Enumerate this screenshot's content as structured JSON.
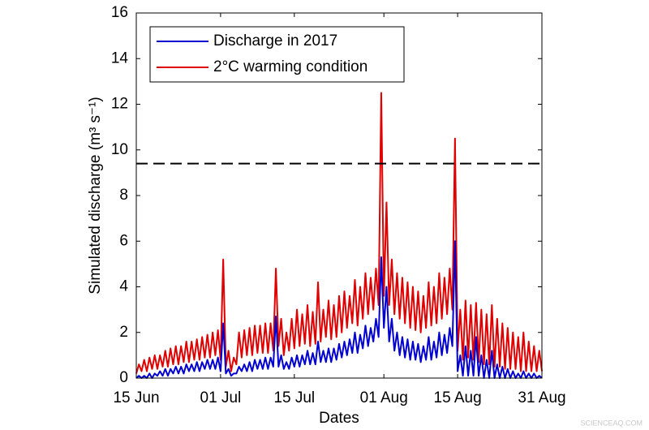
{
  "chart_data": {
    "type": "line",
    "xlabel": "Dates",
    "ylabel": "Simulated discharge (m³ s⁻¹)",
    "watermark": "SCIENCEAQ.COM",
    "x": [
      0,
      0.5,
      1,
      1.5,
      2,
      2.5,
      3,
      3.5,
      4,
      4.5,
      5,
      5.5,
      6,
      6.5,
      7,
      7.5,
      8,
      8.5,
      9,
      9.5,
      10,
      10.5,
      11,
      11.5,
      12,
      12.5,
      13,
      13.5,
      14,
      14.5,
      15,
      15.5,
      16,
      16.5,
      17,
      17.5,
      18,
      18.5,
      19,
      19.5,
      20,
      20.5,
      21,
      21.5,
      22,
      22.5,
      23,
      23.5,
      24,
      24.5,
      25,
      25.5,
      26,
      26.5,
      27,
      27.5,
      28,
      28.5,
      29,
      29.5,
      30,
      30.5,
      31,
      31.5,
      32,
      32.5,
      33,
      33.5,
      34,
      34.5,
      35,
      35.5,
      36,
      36.5,
      37,
      37.5,
      38,
      38.5,
      39,
      39.5,
      40,
      40.5,
      41,
      41.5,
      42,
      42.5,
      43,
      43.5,
      44,
      44.5,
      45,
      45.5,
      46,
      46.5,
      47,
      47.5,
      48,
      48.5,
      49,
      49.5,
      50,
      50.5,
      51,
      51.5,
      52,
      52.5,
      53,
      53.5,
      54,
      54.5,
      55,
      55.5,
      56,
      56.5,
      57,
      57.5,
      58,
      58.5,
      59,
      59.5,
      60,
      60.5,
      61,
      61.5,
      62,
      62.5,
      63,
      63.5,
      64,
      64.5,
      65,
      65.5,
      66,
      66.5,
      67,
      67.5,
      68,
      68.5,
      69,
      69.5,
      70,
      70.5,
      71,
      71.5,
      72,
      72.5,
      73,
      73.5,
      74,
      74.5,
      75,
      75.5,
      76,
      76.5,
      77
    ],
    "series": [
      {
        "name": "2°C warming condition",
        "color": "#e00000",
        "values": [
          0.2,
          0.6,
          0.3,
          0.8,
          0.3,
          0.9,
          0.4,
          1.0,
          0.4,
          1.0,
          0.5,
          1.2,
          0.5,
          1.3,
          0.6,
          1.4,
          0.6,
          1.4,
          0.7,
          1.6,
          0.7,
          1.6,
          0.8,
          1.7,
          0.8,
          1.8,
          0.9,
          1.9,
          0.9,
          2.0,
          1.0,
          2.1,
          0.8,
          5.2,
          0.5,
          1.2,
          0.3,
          0.9,
          0.6,
          2.0,
          0.9,
          2.1,
          1.0,
          2.2,
          1.0,
          2.3,
          1.1,
          2.3,
          1.1,
          2.4,
          1.1,
          2.4,
          1.2,
          4.8,
          1.4,
          2.6,
          1.0,
          2.0,
          1.2,
          2.6,
          1.3,
          3.0,
          1.4,
          2.8,
          1.5,
          3.2,
          1.4,
          2.9,
          1.5,
          4.2,
          1.6,
          3.0,
          1.8,
          3.4,
          1.7,
          3.2,
          1.8,
          3.6,
          2.0,
          3.8,
          2.2,
          3.6,
          2.4,
          4.3,
          2.3,
          4.0,
          2.6,
          4.6,
          2.8,
          4.4,
          3.0,
          4.8,
          3.2,
          12.5,
          3.6,
          7.7,
          3.2,
          5.2,
          2.8,
          4.6,
          2.6,
          4.4,
          2.4,
          4.2,
          2.2,
          4.0,
          2.1,
          3.8,
          2.0,
          3.6,
          2.2,
          4.2,
          2.3,
          4.0,
          2.4,
          4.6,
          2.6,
          4.4,
          2.8,
          4.8,
          3.0,
          10.5,
          1.2,
          3.0,
          0.8,
          3.4,
          0.9,
          3.2,
          0.8,
          3.3,
          0.7,
          3.0,
          0.6,
          2.8,
          0.6,
          3.2,
          0.5,
          2.6,
          0.5,
          2.4,
          0.4,
          2.2,
          0.4,
          2.0,
          0.4,
          1.8,
          0.3,
          2.0,
          0.3,
          1.6,
          0.3,
          1.4,
          0.3,
          1.2,
          0.3
        ]
      },
      {
        "name": "Discharge in 2017",
        "color": "#0000d0",
        "values": [
          0.0,
          0.1,
          0.0,
          0.1,
          0.0,
          0.2,
          0.0,
          0.2,
          0.1,
          0.3,
          0.1,
          0.4,
          0.1,
          0.4,
          0.2,
          0.5,
          0.2,
          0.5,
          0.2,
          0.6,
          0.3,
          0.6,
          0.3,
          0.7,
          0.3,
          0.7,
          0.4,
          0.8,
          0.4,
          0.8,
          0.4,
          0.9,
          0.3,
          2.4,
          0.2,
          0.4,
          0.1,
          0.2,
          0.2,
          0.5,
          0.3,
          0.6,
          0.3,
          0.7,
          0.3,
          0.8,
          0.4,
          0.8,
          0.4,
          0.9,
          0.4,
          0.9,
          0.5,
          2.7,
          0.5,
          1.0,
          0.4,
          0.7,
          0.4,
          0.9,
          0.5,
          1.0,
          0.5,
          1.0,
          0.6,
          1.2,
          0.6,
          1.1,
          0.6,
          1.6,
          0.7,
          1.2,
          0.7,
          1.3,
          0.7,
          1.3,
          0.8,
          1.5,
          0.9,
          1.6,
          1.0,
          1.7,
          1.1,
          2.0,
          1.1,
          1.9,
          1.3,
          2.3,
          1.4,
          2.2,
          1.6,
          2.6,
          1.8,
          5.3,
          2.2,
          4.0,
          1.6,
          2.6,
          1.2,
          2.0,
          1.0,
          1.8,
          0.9,
          1.7,
          0.8,
          1.6,
          0.8,
          1.5,
          0.7,
          1.4,
          0.8,
          1.8,
          0.8,
          1.6,
          0.9,
          2.0,
          1.0,
          1.9,
          1.1,
          2.2,
          1.4,
          6.0,
          0.3,
          1.0,
          0.1,
          1.4,
          0.1,
          1.2,
          0.1,
          1.8,
          0.1,
          1.0,
          0.0,
          0.8,
          0.0,
          1.2,
          0.0,
          0.6,
          0.0,
          0.5,
          0.0,
          0.4,
          0.0,
          0.3,
          0.0,
          0.2,
          0.0,
          0.3,
          0.0,
          0.2,
          0.0,
          0.2,
          0.0,
          0.1,
          0.0
        ]
      }
    ],
    "legend_order": [
      1,
      0
    ],
    "legend": "upper left",
    "reference_line": {
      "value": 9.4,
      "style": "dashed",
      "color": "#000000"
    },
    "xlim": [
      0,
      77
    ],
    "xticks": [
      {
        "value": 0,
        "label": "15 Jun"
      },
      {
        "value": 16,
        "label": "01 Jul"
      },
      {
        "value": 30,
        "label": "15 Jul"
      },
      {
        "value": 47,
        "label": "01 Aug"
      },
      {
        "value": 61,
        "label": "15 Aug"
      },
      {
        "value": 77,
        "label": "31 Aug"
      }
    ],
    "ylim": [
      0,
      16
    ],
    "yticks": [
      0,
      2,
      4,
      6,
      8,
      10,
      12,
      14,
      16
    ],
    "grid": false
  }
}
